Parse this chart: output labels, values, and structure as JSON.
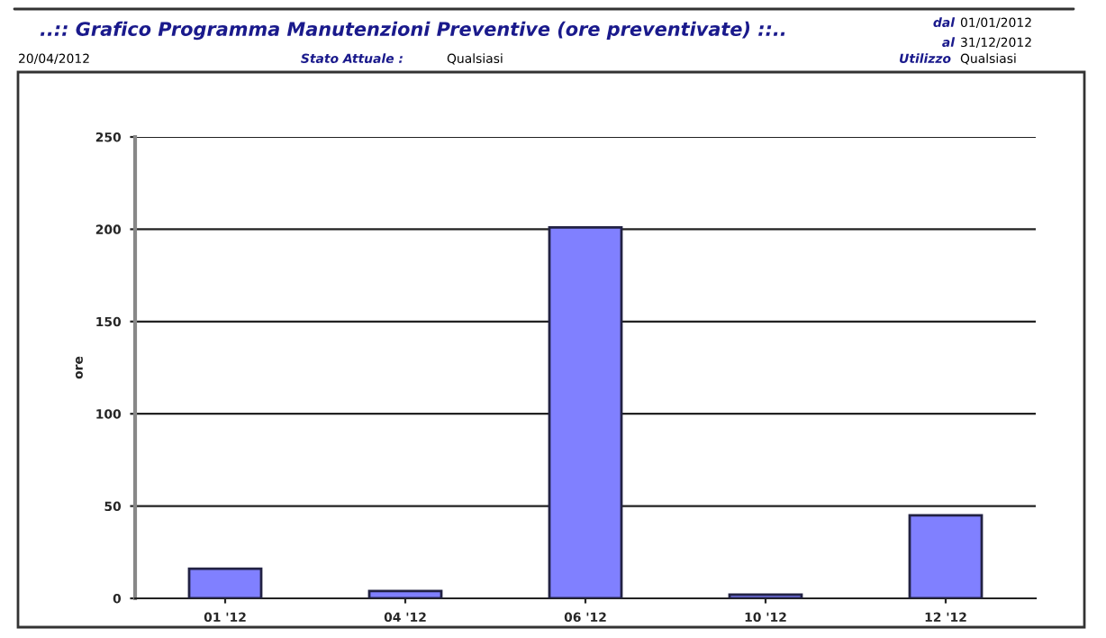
{
  "chart_data": {
    "type": "bar",
    "title": "..:: Grafico Programma Manutenzioni Preventive (ore preventivate) ::..",
    "ylabel": "ore",
    "categories": [
      "01 '12",
      "04 '12",
      "06 '12",
      "10 '12",
      "12 '12"
    ],
    "values": [
      16,
      4,
      201,
      2,
      45
    ],
    "color": "#8080ff",
    "ylim": [
      0,
      250
    ],
    "yticks": [
      0,
      50,
      100,
      150,
      200,
      250
    ],
    "grid": "y",
    "annotations": [
      "dal",
      "01/01/2012",
      "al",
      "31/12/2012",
      "20/04/2012",
      "Stato Attuale :",
      "Qualsiasi",
      "Utilizzo",
      "Qualsiasi"
    ]
  }
}
